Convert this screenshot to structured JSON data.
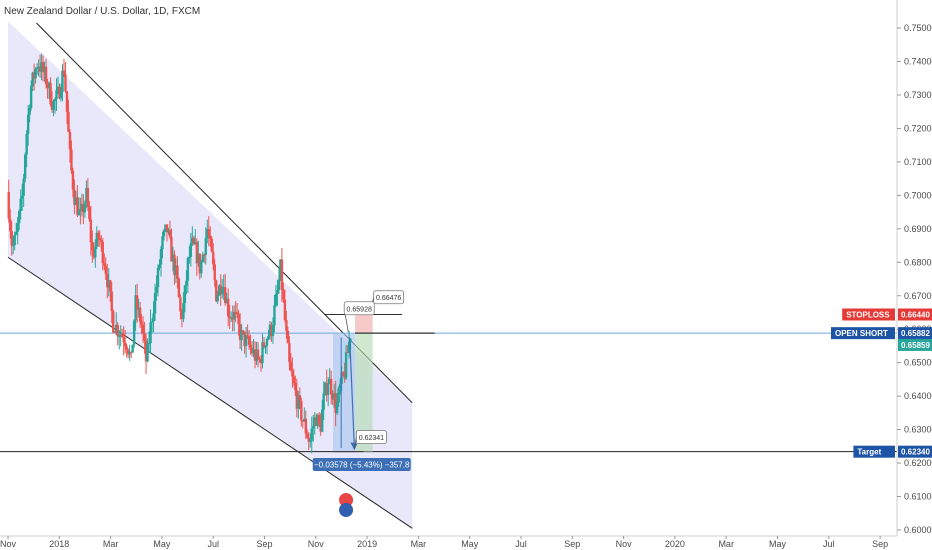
{
  "chart_data": {
    "type": "candlestick",
    "title": "New Zealand Dollar / U.S. Dollar, 1D, FXCM",
    "x_ticks": [
      "Nov",
      "2018",
      "Mar",
      "May",
      "Jul",
      "Sep",
      "Nov",
      "2019",
      "Mar",
      "May",
      "Jul",
      "Sep",
      "Nov",
      "2020",
      "Mar",
      "May",
      "Jul",
      "Sep"
    ],
    "y_ticks": [
      "0.75000",
      "0.74000",
      "0.73000",
      "0.72000",
      "0.71000",
      "0.70000",
      "0.69000",
      "0.68000",
      "0.67000",
      "0.66000",
      "0.65000",
      "0.64000",
      "0.63000",
      "0.62000",
      "0.61000",
      "0.60000"
    ],
    "ylim": [
      0.5985,
      0.7545
    ],
    "price_path": [
      [
        0.0,
        0.701
      ],
      [
        0.025,
        0.684
      ],
      [
        0.045,
        0.688
      ],
      [
        0.075,
        0.7
      ],
      [
        0.09,
        0.715
      ],
      [
        0.115,
        0.732
      ],
      [
        0.15,
        0.74
      ],
      [
        0.19,
        0.735
      ],
      [
        0.225,
        0.727
      ],
      [
        0.25,
        0.73
      ],
      [
        0.28,
        0.738
      ],
      [
        0.31,
        0.71
      ],
      [
        0.33,
        0.7
      ],
      [
        0.36,
        0.693
      ],
      [
        0.39,
        0.7
      ],
      [
        0.42,
        0.682
      ],
      [
        0.45,
        0.688
      ],
      [
        0.48,
        0.68
      ],
      [
        0.5,
        0.672
      ],
      [
        0.52,
        0.662
      ],
      [
        0.545,
        0.66
      ],
      [
        0.57,
        0.658
      ],
      [
        0.59,
        0.656
      ],
      [
        0.61,
        0.65
      ],
      [
        0.63,
        0.668
      ],
      [
        0.66,
        0.662
      ],
      [
        0.685,
        0.65
      ],
      [
        0.71,
        0.663
      ],
      [
        0.74,
        0.675
      ],
      [
        0.76,
        0.685
      ],
      [
        0.785,
        0.69
      ],
      [
        0.81,
        0.682
      ],
      [
        0.835,
        0.675
      ],
      [
        0.855,
        0.663
      ],
      [
        0.87,
        0.668
      ],
      [
        0.89,
        0.68
      ],
      [
        0.91,
        0.685
      ],
      [
        0.93,
        0.683
      ],
      [
        0.95,
        0.678
      ],
      [
        0.97,
        0.685
      ],
      [
        0.985,
        0.69
      ],
      [
        1.01,
        0.68
      ],
      [
        1.03,
        0.67
      ],
      [
        1.06,
        0.675
      ],
      [
        1.09,
        0.665
      ],
      [
        1.12,
        0.664
      ],
      [
        1.15,
        0.658
      ],
      [
        1.18,
        0.656
      ],
      [
        1.21,
        0.653
      ],
      [
        1.24,
        0.65
      ],
      [
        1.27,
        0.657
      ],
      [
        1.3,
        0.66
      ],
      [
        1.33,
        0.671
      ],
      [
        1.345,
        0.678
      ],
      [
        1.36,
        0.667
      ],
      [
        1.375,
        0.657
      ],
      [
        1.39,
        0.648
      ],
      [
        1.41,
        0.643
      ],
      [
        1.43,
        0.638
      ],
      [
        1.46,
        0.632
      ],
      [
        1.49,
        0.626
      ],
      [
        1.5,
        0.63
      ],
      [
        1.52,
        0.634
      ],
      [
        1.54,
        0.63
      ],
      [
        1.56,
        0.64
      ],
      [
        1.58,
        0.645
      ],
      [
        1.6,
        0.642
      ],
      [
        1.62,
        0.636
      ],
      [
        1.64,
        0.643
      ],
      [
        1.66,
        0.647
      ],
      [
        1.68,
        0.655
      ],
      [
        1.69,
        0.6588
      ]
    ],
    "channel": {
      "upper": [
        [
          0.0,
          0.752
        ],
        [
          1.99,
          0.638
        ]
      ],
      "lower": [
        [
          0.0,
          0.6815
        ],
        [
          1.99,
          0.6005
        ]
      ]
    },
    "trade": {
      "entry": 0.65882,
      "stop": 0.6644,
      "target": 0.6234,
      "stop_box_label": "0.66476",
      "entry_box_label": "0.65928",
      "target_box_label": "0.62341",
      "measure": "−0.03578 (−5.43%) −357.8"
    },
    "lines": {
      "support": 0.6234,
      "open_short": 0.65882
    },
    "price_tags": [
      {
        "label": "STOPLOSS",
        "value": "0.66440",
        "color": "#e53935",
        "price": 0.6644
      },
      {
        "label": "OPEN SHORT",
        "value": "0.65882",
        "color": "#1e54a6",
        "price": 0.65882
      },
      {
        "label": "",
        "value": "0.65859",
        "color": "#26a69a",
        "price": 0.65859
      },
      {
        "label": "Target",
        "value": "0.62340",
        "color": "#1e54a6",
        "price": 0.6234
      }
    ],
    "colors": {
      "up": "#26a69a",
      "down": "#ef5350",
      "channel_fill": "#e6e6fa"
    }
  }
}
